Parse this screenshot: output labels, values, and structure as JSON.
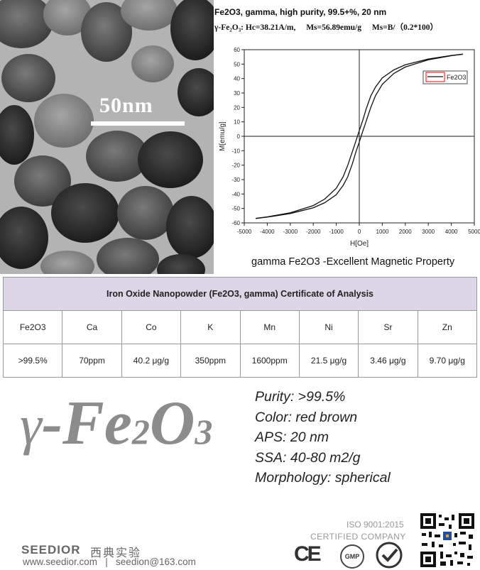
{
  "tem": {
    "scale_label": "50nm"
  },
  "header": {
    "line1": "Fe2O3, gamma, high purity, 99.5+%, 20 nm",
    "hc": "γ-Fe₂O₃:  Hc=38.21A/m,",
    "ms": "Ms=56.89emu/g",
    "ms_formula": "Ms=B/（0.2*100）"
  },
  "caption": "gamma Fe2O3 -Excellent Magnetic Property",
  "chart_data": {
    "type": "line",
    "xlabel": "H[Oe]",
    "ylabel": "M[emu/g]",
    "xlim": [
      -5000,
      5000
    ],
    "ylim": [
      -60,
      60
    ],
    "x_ticks": [
      -5000,
      -4000,
      -3000,
      -2000,
      -1000,
      0,
      1000,
      2000,
      3000,
      4000,
      5000
    ],
    "y_ticks": [
      -60,
      -50,
      -40,
      -30,
      -20,
      -10,
      0,
      10,
      20,
      30,
      40,
      50,
      60
    ],
    "legend": "top-right",
    "series": [
      {
        "name": "Fe2O3",
        "branches": {
          "descending": {
            "x": [
              4500,
              4000,
              3000,
              2000,
              1500,
              1000,
              700,
              500,
              300,
              150,
              0,
              -150,
              -300,
              -500,
              -700,
              -1000,
              -1500,
              -2000,
              -3000,
              -4000,
              -4500
            ],
            "y": [
              56.9,
              56.0,
              53.5,
              49.5,
              46.0,
              40.5,
              34.0,
              28.0,
              19.0,
              11.0,
              4.0,
              -3.5,
              -10.5,
              -20.0,
              -28.0,
              -36.0,
              -43.5,
              -48.0,
              -53.0,
              -55.8,
              -56.9
            ]
          },
          "ascending": {
            "x": [
              -4500,
              -4000,
              -3000,
              -2000,
              -1500,
              -1000,
              -700,
              -500,
              -300,
              -150,
              0,
              150,
              300,
              500,
              700,
              1000,
              1500,
              2000,
              3000,
              4000,
              4500
            ],
            "y": [
              -56.9,
              -56.0,
              -53.5,
              -49.5,
              -46.0,
              -40.5,
              -34.0,
              -28.0,
              -19.0,
              -11.0,
              -4.0,
              3.5,
              10.5,
              20.0,
              28.0,
              36.0,
              43.5,
              48.0,
              53.0,
              55.8,
              56.9
            ]
          }
        }
      }
    ]
  },
  "table": {
    "title": "Iron Oxide Nanopowder (Fe2O3, gamma) Certificate of Analysis",
    "headers": [
      "Fe2O3",
      "Ca",
      "Co",
      "K",
      "Mn",
      "Ni",
      "Sr",
      "Zn"
    ],
    "values": [
      ">99.5%",
      "70ppm",
      "40.2 μg/g",
      "350ppm",
      "1600ppm",
      "21.5 μg/g",
      "3.46 μg/g",
      "9.70 μg/g"
    ]
  },
  "formula": {
    "gamma": "γ",
    "dash_fe": "-Fe",
    "sub2": "2",
    "o": "O",
    "sub3": "3"
  },
  "properties": [
    "Purity: >99.5%",
    "Color: red brown",
    "APS: 20 nm",
    "SSA: 40-80 m2/g",
    "Morphology: spherical"
  ],
  "footer": {
    "brand": "SEEDIOR",
    "brand_cn": "西典实验",
    "contact": "www.seedior.com   |   seedion@163.com",
    "iso": "ISO 9001:2015",
    "certified": "CERTIFIED COMPANY",
    "ce": "CE",
    "gmp": "GMP"
  },
  "colors": {
    "table_header": "#ddd6e6",
    "formula_gray": "#8c8c8c",
    "legend_box": "#ff0000"
  }
}
